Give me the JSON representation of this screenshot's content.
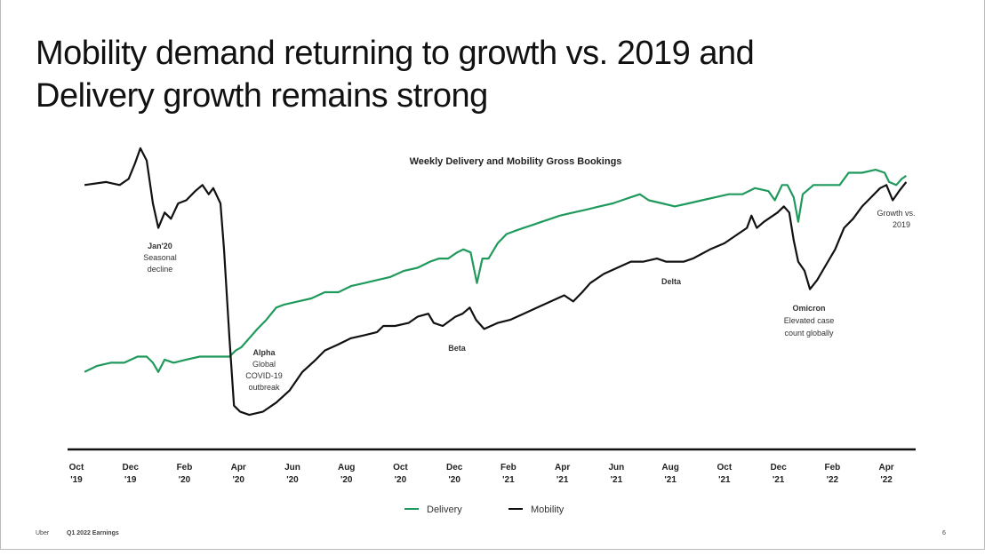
{
  "slide": {
    "title_line1": "Mobility demand returning to growth vs. 2019 and",
    "title_line2": "Delivery growth remains strong",
    "footer_brand": "Uber",
    "footer_text": "Q1 2022 Earnings",
    "page_number": "6"
  },
  "chart_data": {
    "type": "line",
    "title": "Weekly Delivery and Mobility Gross Bookings",
    "xlabel": "",
    "ylabel": "",
    "y_axis_shown": false,
    "grid": false,
    "legend_position": "bottom",
    "x_ticks": [
      [
        "Oct",
        "'19"
      ],
      [
        "Dec",
        "'19"
      ],
      [
        "Feb",
        "'20"
      ],
      [
        "Apr",
        "'20"
      ],
      [
        "Jun",
        "'20"
      ],
      [
        "Aug",
        "'20"
      ],
      [
        "Oct",
        "'20"
      ],
      [
        "Dec",
        "'20"
      ],
      [
        "Feb",
        "'21"
      ],
      [
        "Apr",
        "'21"
      ],
      [
        "Jun",
        "'21"
      ],
      [
        "Aug",
        "'21"
      ],
      [
        "Oct",
        "'21"
      ],
      [
        "Dec",
        "'21"
      ],
      [
        "Feb",
        "'22"
      ],
      [
        "Apr",
        "'22"
      ]
    ],
    "x_tick_dates": [
      "2019-10-01",
      "2019-12-01",
      "2020-02-01",
      "2020-04-01",
      "2020-06-01",
      "2020-08-01",
      "2020-10-01",
      "2020-12-01",
      "2021-02-01",
      "2021-04-01",
      "2021-06-01",
      "2021-08-01",
      "2021-10-01",
      "2021-12-01",
      "2022-02-01",
      "2022-04-01"
    ],
    "ylim": [
      0,
      100
    ],
    "series": [
      {
        "name": "Delivery",
        "color": "#1f9a5c",
        "points": [
          [
            "2019-10-10",
            25
          ],
          [
            "2019-10-24",
            27
          ],
          [
            "2019-11-09",
            28
          ],
          [
            "2019-11-24",
            28
          ],
          [
            "2019-12-09",
            30
          ],
          [
            "2019-12-19",
            30
          ],
          [
            "2019-12-26",
            28
          ],
          [
            "2020-01-02",
            25
          ],
          [
            "2020-01-09",
            29
          ],
          [
            "2020-01-19",
            28
          ],
          [
            "2020-02-03",
            29
          ],
          [
            "2020-02-18",
            30
          ],
          [
            "2020-03-03",
            30
          ],
          [
            "2020-03-13",
            30
          ],
          [
            "2020-03-21",
            30
          ],
          [
            "2020-03-28",
            32
          ],
          [
            "2020-04-04",
            33
          ],
          [
            "2020-04-13",
            36
          ],
          [
            "2020-04-22",
            39
          ],
          [
            "2020-05-02",
            42
          ],
          [
            "2020-05-13",
            46
          ],
          [
            "2020-05-22",
            47
          ],
          [
            "2020-06-07",
            48
          ],
          [
            "2020-06-22",
            49
          ],
          [
            "2020-07-07",
            51
          ],
          [
            "2020-07-22",
            51
          ],
          [
            "2020-08-06",
            53
          ],
          [
            "2020-08-21",
            54
          ],
          [
            "2020-09-05",
            55
          ],
          [
            "2020-09-20",
            56
          ],
          [
            "2020-10-05",
            58
          ],
          [
            "2020-10-20",
            59
          ],
          [
            "2020-11-04",
            61
          ],
          [
            "2020-11-14",
            62
          ],
          [
            "2020-11-24",
            62
          ],
          [
            "2020-12-04",
            64
          ],
          [
            "2020-12-11",
            65
          ],
          [
            "2020-12-19",
            64
          ],
          [
            "2020-12-26",
            54
          ],
          [
            "2021-01-02",
            62
          ],
          [
            "2021-01-09",
            62
          ],
          [
            "2021-01-19",
            67
          ],
          [
            "2021-01-29",
            70
          ],
          [
            "2021-02-08",
            71
          ],
          [
            "2021-02-18",
            72
          ],
          [
            "2021-02-28",
            73
          ],
          [
            "2021-03-08",
            74
          ],
          [
            "2021-03-18",
            75
          ],
          [
            "2021-03-28",
            76
          ],
          [
            "2021-04-13",
            77
          ],
          [
            "2021-04-28",
            78
          ],
          [
            "2021-05-12",
            79
          ],
          [
            "2021-05-27",
            80
          ],
          [
            "2021-06-07",
            81
          ],
          [
            "2021-06-17",
            82
          ],
          [
            "2021-06-27",
            83
          ],
          [
            "2021-07-07",
            81
          ],
          [
            "2021-07-22",
            80
          ],
          [
            "2021-08-06",
            79
          ],
          [
            "2021-08-21",
            80
          ],
          [
            "2021-09-06",
            81
          ],
          [
            "2021-09-21",
            82
          ],
          [
            "2021-10-06",
            83
          ],
          [
            "2021-10-21",
            83
          ],
          [
            "2021-11-05",
            85
          ],
          [
            "2021-11-20",
            84
          ],
          [
            "2021-11-27",
            81
          ],
          [
            "2021-12-05",
            86
          ],
          [
            "2021-12-11",
            86
          ],
          [
            "2021-12-18",
            82
          ],
          [
            "2021-12-23",
            74
          ],
          [
            "2021-12-28",
            83
          ],
          [
            "2022-01-10",
            86
          ],
          [
            "2022-01-24",
            86
          ],
          [
            "2022-02-09",
            86
          ],
          [
            "2022-02-19",
            90
          ],
          [
            "2022-03-04",
            90
          ],
          [
            "2022-03-19",
            91
          ],
          [
            "2022-03-29",
            90
          ],
          [
            "2022-04-04",
            87
          ],
          [
            "2022-04-12",
            86
          ],
          [
            "2022-04-18",
            88
          ],
          [
            "2022-04-23",
            89
          ]
        ]
      },
      {
        "name": "Mobility",
        "color": "#111111",
        "points": [
          [
            "2019-10-10",
            86
          ],
          [
            "2019-11-04",
            87
          ],
          [
            "2019-11-19",
            86
          ],
          [
            "2019-11-29",
            88
          ],
          [
            "2019-12-06",
            93
          ],
          [
            "2019-12-12",
            98
          ],
          [
            "2019-12-19",
            94
          ],
          [
            "2019-12-26",
            80
          ],
          [
            "2020-01-02",
            72
          ],
          [
            "2020-01-09",
            77
          ],
          [
            "2020-01-16",
            75
          ],
          [
            "2020-01-24",
            80
          ],
          [
            "2020-02-03",
            81
          ],
          [
            "2020-02-13",
            84
          ],
          [
            "2020-02-21",
            86
          ],
          [
            "2020-02-28",
            83
          ],
          [
            "2020-03-03",
            85
          ],
          [
            "2020-03-11",
            80
          ],
          [
            "2020-03-15",
            65
          ],
          [
            "2020-03-21",
            36
          ],
          [
            "2020-03-26",
            14
          ],
          [
            "2020-04-03",
            12
          ],
          [
            "2020-04-13",
            11
          ],
          [
            "2020-04-28",
            12
          ],
          [
            "2020-05-13",
            15
          ],
          [
            "2020-05-28",
            19
          ],
          [
            "2020-06-12",
            25
          ],
          [
            "2020-06-27",
            29
          ],
          [
            "2020-07-07",
            32
          ],
          [
            "2020-07-22",
            34
          ],
          [
            "2020-08-06",
            36
          ],
          [
            "2020-08-21",
            37
          ],
          [
            "2020-09-05",
            38
          ],
          [
            "2020-09-12",
            40
          ],
          [
            "2020-09-25",
            40
          ],
          [
            "2020-10-10",
            41
          ],
          [
            "2020-10-20",
            43
          ],
          [
            "2020-11-02",
            44
          ],
          [
            "2020-11-08",
            41
          ],
          [
            "2020-11-18",
            40
          ],
          [
            "2020-12-02",
            43
          ],
          [
            "2020-12-10",
            44
          ],
          [
            "2020-12-18",
            46
          ],
          [
            "2020-12-25",
            42
          ],
          [
            "2021-01-04",
            39
          ],
          [
            "2021-01-19",
            41
          ],
          [
            "2021-02-03",
            42
          ],
          [
            "2021-02-18",
            44
          ],
          [
            "2021-03-03",
            46
          ],
          [
            "2021-03-18",
            48
          ],
          [
            "2021-04-03",
            50
          ],
          [
            "2021-04-13",
            48
          ],
          [
            "2021-04-23",
            51
          ],
          [
            "2021-05-02",
            54
          ],
          [
            "2021-05-17",
            57
          ],
          [
            "2021-06-02",
            59
          ],
          [
            "2021-06-17",
            61
          ],
          [
            "2021-07-01",
            61
          ],
          [
            "2021-07-16",
            62
          ],
          [
            "2021-07-26",
            61
          ],
          [
            "2021-08-06",
            61
          ],
          [
            "2021-08-16",
            61
          ],
          [
            "2021-08-26",
            62
          ],
          [
            "2021-09-15",
            65
          ],
          [
            "2021-10-01",
            67
          ],
          [
            "2021-10-16",
            70
          ],
          [
            "2021-10-26",
            72
          ],
          [
            "2021-10-31",
            76
          ],
          [
            "2021-11-07",
            72
          ],
          [
            "2021-11-15",
            74
          ],
          [
            "2021-11-30",
            77
          ],
          [
            "2021-12-07",
            79
          ],
          [
            "2021-12-13",
            77
          ],
          [
            "2021-12-18",
            68
          ],
          [
            "2021-12-23",
            61
          ],
          [
            "2021-12-30",
            58
          ],
          [
            "2022-01-06",
            52
          ],
          [
            "2022-01-14",
            55
          ],
          [
            "2022-01-24",
            60
          ],
          [
            "2022-02-04",
            65
          ],
          [
            "2022-02-14",
            72
          ],
          [
            "2022-02-24",
            75
          ],
          [
            "2022-03-04",
            79
          ],
          [
            "2022-03-14",
            82
          ],
          [
            "2022-03-24",
            85
          ],
          [
            "2022-04-01",
            86
          ],
          [
            "2022-04-08",
            81
          ],
          [
            "2022-04-15",
            84
          ],
          [
            "2022-04-23",
            87
          ]
        ]
      }
    ],
    "annotations": {
      "jan20": {
        "title": "Jan'20",
        "lines": [
          "Seasonal",
          "decline"
        ]
      },
      "alpha": {
        "title": "Alpha",
        "lines": [
          "Global",
          "COVID-19",
          "outbreak"
        ]
      },
      "beta": {
        "title": "Beta",
        "lines": []
      },
      "delta": {
        "title": "Delta",
        "lines": []
      },
      "omicron": {
        "title": "Omicron",
        "lines": [
          "Elevated case",
          "count globally"
        ]
      },
      "growth": {
        "title": "",
        "lines": [
          "Growth vs.",
          "2019"
        ]
      }
    }
  }
}
